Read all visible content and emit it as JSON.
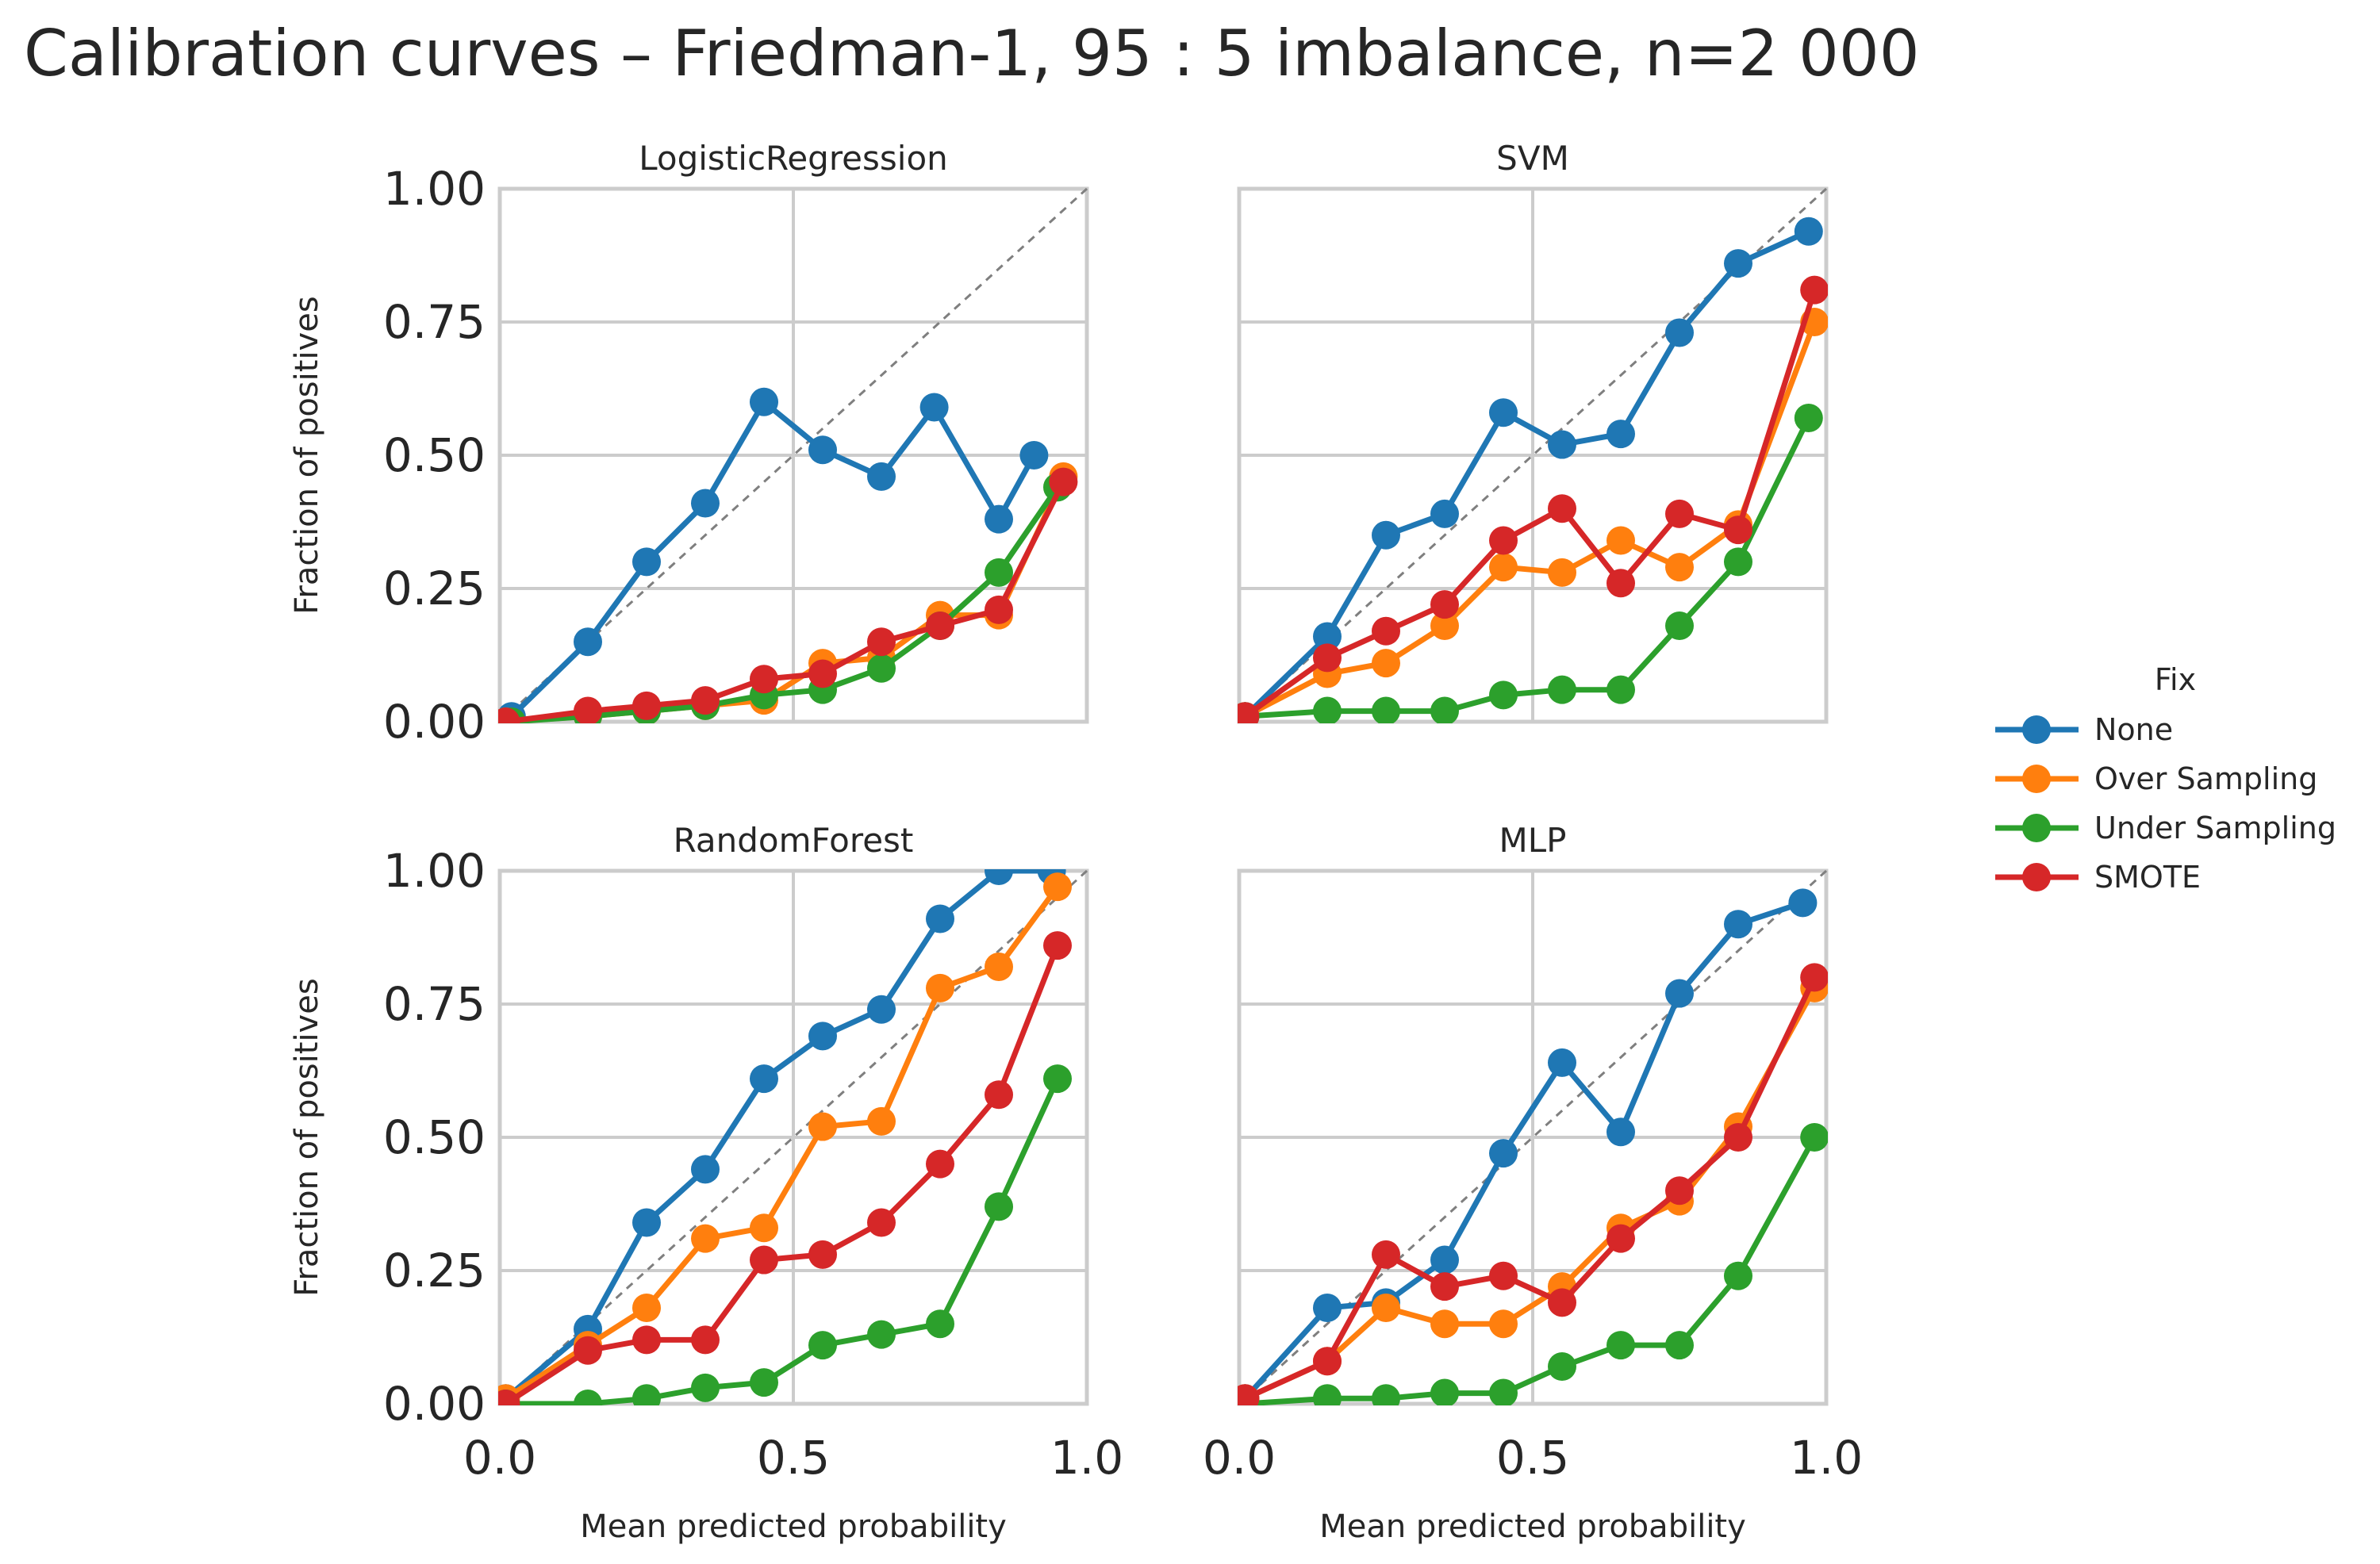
{
  "title": "Calibration curves – Friedman-1, 95 : 5 imbalance, n=2 000",
  "legend": {
    "title": "Fix",
    "placement": "right"
  },
  "colors": {
    "None": "#1f77b4",
    "Over Sampling": "#ff7f0e",
    "Under Sampling": "#2ca02c",
    "SMOTE": "#d62728",
    "grid": "#cccccc",
    "diagonal": "#7f7f7f"
  },
  "chart_data": [
    {
      "type": "line",
      "title": "LogisticRegression",
      "xlabel": "Mean predicted probability",
      "ylabel": "Fraction of positives",
      "xlim": [
        0,
        1
      ],
      "ylim": [
        0,
        1
      ],
      "xticks": [
        "0.0",
        "0.5",
        "1.0"
      ],
      "yticks": [
        "0.00",
        "0.25",
        "0.50",
        "0.75",
        "1.00"
      ],
      "grid": true,
      "reference_line": "perfectly calibrated diagonal (dashed)",
      "series": [
        {
          "name": "None",
          "x": [
            0.02,
            0.15,
            0.25,
            0.35,
            0.45,
            0.55,
            0.65,
            0.74,
            0.85,
            0.91
          ],
          "y": [
            0.01,
            0.15,
            0.3,
            0.41,
            0.6,
            0.51,
            0.46,
            0.59,
            0.38,
            0.5
          ]
        },
        {
          "name": "Over Sampling",
          "x": [
            0.01,
            0.15,
            0.25,
            0.35,
            0.45,
            0.55,
            0.65,
            0.75,
            0.85,
            0.96
          ],
          "y": [
            0.0,
            0.01,
            0.02,
            0.03,
            0.04,
            0.11,
            0.12,
            0.2,
            0.2,
            0.46
          ]
        },
        {
          "name": "Under Sampling",
          "x": [
            0.02,
            0.15,
            0.25,
            0.35,
            0.45,
            0.55,
            0.65,
            0.75,
            0.85,
            0.95
          ],
          "y": [
            0.0,
            0.01,
            0.02,
            0.03,
            0.05,
            0.06,
            0.1,
            0.18,
            0.28,
            0.44
          ]
        },
        {
          "name": "SMOTE",
          "x": [
            0.01,
            0.15,
            0.25,
            0.35,
            0.45,
            0.55,
            0.65,
            0.75,
            0.85,
            0.96
          ],
          "y": [
            0.0,
            0.02,
            0.03,
            0.04,
            0.08,
            0.09,
            0.15,
            0.18,
            0.21,
            0.45
          ]
        }
      ]
    },
    {
      "type": "line",
      "title": "SVM",
      "xlabel": "",
      "ylabel": "",
      "xlim": [
        0,
        1
      ],
      "ylim": [
        0,
        1
      ],
      "grid": true,
      "series": [
        {
          "name": "None",
          "x": [
            0.01,
            0.15,
            0.25,
            0.35,
            0.45,
            0.55,
            0.65,
            0.75,
            0.85,
            0.97
          ],
          "y": [
            0.01,
            0.16,
            0.35,
            0.39,
            0.58,
            0.52,
            0.54,
            0.73,
            0.86,
            0.92
          ]
        },
        {
          "name": "Over Sampling",
          "x": [
            0.01,
            0.15,
            0.25,
            0.35,
            0.45,
            0.55,
            0.65,
            0.75,
            0.85,
            0.98
          ],
          "y": [
            0.01,
            0.09,
            0.11,
            0.18,
            0.29,
            0.28,
            0.34,
            0.29,
            0.37,
            0.75
          ]
        },
        {
          "name": "Under Sampling",
          "x": [
            0.01,
            0.15,
            0.25,
            0.35,
            0.45,
            0.55,
            0.65,
            0.75,
            0.85,
            0.97
          ],
          "y": [
            0.01,
            0.02,
            0.02,
            0.02,
            0.05,
            0.06,
            0.06,
            0.18,
            0.3,
            0.57
          ]
        },
        {
          "name": "SMOTE",
          "x": [
            0.01,
            0.15,
            0.25,
            0.35,
            0.45,
            0.55,
            0.65,
            0.75,
            0.85,
            0.98
          ],
          "y": [
            0.01,
            0.12,
            0.17,
            0.22,
            0.34,
            0.4,
            0.26,
            0.39,
            0.36,
            0.81
          ]
        }
      ]
    },
    {
      "type": "line",
      "title": "RandomForest",
      "xlabel": "Mean predicted probability",
      "ylabel": "Fraction of positives",
      "xlim": [
        0,
        1
      ],
      "ylim": [
        0,
        1
      ],
      "xticks": [
        "0.0",
        "0.5",
        "1.0"
      ],
      "yticks": [
        "0.00",
        "0.25",
        "0.50",
        "0.75",
        "1.00"
      ],
      "grid": true,
      "series": [
        {
          "name": "None",
          "x": [
            0.01,
            0.15,
            0.25,
            0.35,
            0.45,
            0.55,
            0.65,
            0.75,
            0.85,
            0.94
          ],
          "y": [
            0.01,
            0.14,
            0.34,
            0.44,
            0.61,
            0.69,
            0.74,
            0.91,
            1.0,
            1.0
          ]
        },
        {
          "name": "Over Sampling",
          "x": [
            0.01,
            0.15,
            0.25,
            0.35,
            0.45,
            0.55,
            0.65,
            0.75,
            0.85,
            0.95
          ],
          "y": [
            0.01,
            0.11,
            0.18,
            0.31,
            0.33,
            0.52,
            0.53,
            0.78,
            0.82,
            0.97
          ]
        },
        {
          "name": "Under Sampling",
          "x": [
            0.01,
            0.15,
            0.25,
            0.35,
            0.45,
            0.55,
            0.65,
            0.75,
            0.85,
            0.95
          ],
          "y": [
            0.0,
            0.0,
            0.01,
            0.03,
            0.04,
            0.11,
            0.13,
            0.15,
            0.37,
            0.61
          ]
        },
        {
          "name": "SMOTE",
          "x": [
            0.01,
            0.15,
            0.25,
            0.35,
            0.45,
            0.55,
            0.65,
            0.75,
            0.85,
            0.95
          ],
          "y": [
            0.0,
            0.1,
            0.12,
            0.12,
            0.27,
            0.28,
            0.34,
            0.45,
            0.58,
            0.86
          ]
        }
      ]
    },
    {
      "type": "line",
      "title": "MLP",
      "xlabel": "Mean predicted probability",
      "ylabel": "",
      "xlim": [
        0,
        1
      ],
      "ylim": [
        0,
        1
      ],
      "xticks": [
        "0.0",
        "0.5",
        "1.0"
      ],
      "grid": true,
      "series": [
        {
          "name": "None",
          "x": [
            0.01,
            0.15,
            0.25,
            0.35,
            0.45,
            0.55,
            0.65,
            0.75,
            0.85,
            0.96
          ],
          "y": [
            0.01,
            0.18,
            0.19,
            0.27,
            0.47,
            0.64,
            0.51,
            0.77,
            0.9,
            0.94
          ]
        },
        {
          "name": "Over Sampling",
          "x": [
            0.01,
            0.15,
            0.25,
            0.35,
            0.45,
            0.55,
            0.65,
            0.75,
            0.85,
            0.98
          ],
          "y": [
            0.01,
            0.08,
            0.18,
            0.15,
            0.15,
            0.22,
            0.33,
            0.38,
            0.52,
            0.78
          ]
        },
        {
          "name": "Under Sampling",
          "x": [
            0.01,
            0.15,
            0.25,
            0.35,
            0.45,
            0.55,
            0.65,
            0.75,
            0.85,
            0.98
          ],
          "y": [
            0.0,
            0.01,
            0.01,
            0.02,
            0.02,
            0.07,
            0.11,
            0.11,
            0.24,
            0.5
          ]
        },
        {
          "name": "SMOTE",
          "x": [
            0.01,
            0.15,
            0.25,
            0.35,
            0.45,
            0.55,
            0.65,
            0.75,
            0.85,
            0.98
          ],
          "y": [
            0.01,
            0.08,
            0.28,
            0.22,
            0.24,
            0.19,
            0.31,
            0.4,
            0.5,
            0.8
          ]
        }
      ]
    }
  ]
}
